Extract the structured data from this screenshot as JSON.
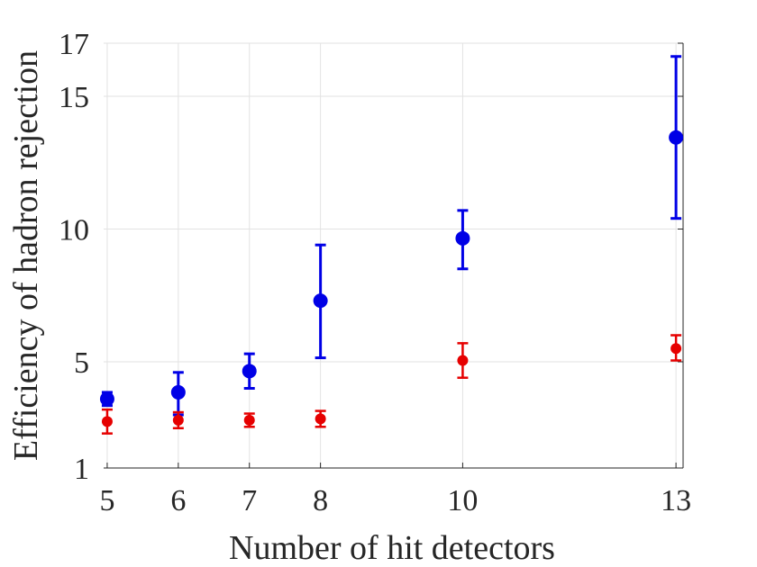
{
  "chart_data": {
    "type": "scatter",
    "title": "",
    "xlabel": "Number of hit detectors",
    "ylabel": "Efficiency of hadron rejection",
    "x_ticks": [
      5,
      6,
      7,
      8,
      10,
      13
    ],
    "y_ticks": [
      1,
      5,
      10,
      15,
      17
    ],
    "x_tick_labels": [
      "5",
      "6",
      "7",
      "8",
      "10",
      "13"
    ],
    "y_tick_labels": [
      "1",
      "5",
      "10",
      "15",
      "17"
    ],
    "xlim": [
      4.95,
      13.1
    ],
    "ylim": [
      1,
      17
    ],
    "grid": true,
    "legend": "none",
    "series": [
      {
        "color": "#0000e6",
        "marker": "large-circle",
        "points": [
          {
            "x": 5,
            "y": 3.6,
            "lo": 3.35,
            "hi": 3.85
          },
          {
            "x": 6,
            "y": 3.85,
            "lo": 3.0,
            "hi": 4.6
          },
          {
            "x": 7,
            "y": 4.65,
            "lo": 4.0,
            "hi": 5.3
          },
          {
            "x": 8,
            "y": 7.3,
            "lo": 5.15,
            "hi": 9.4
          },
          {
            "x": 10,
            "y": 9.65,
            "lo": 8.5,
            "hi": 10.7
          },
          {
            "x": 13,
            "y": 13.45,
            "lo": 10.4,
            "hi": 16.5
          }
        ]
      },
      {
        "color": "#e60000",
        "marker": "small-circle",
        "points": [
          {
            "x": 5,
            "y": 2.75,
            "lo": 2.3,
            "hi": 3.2
          },
          {
            "x": 6,
            "y": 2.8,
            "lo": 2.5,
            "hi": 3.1
          },
          {
            "x": 7,
            "y": 2.8,
            "lo": 2.55,
            "hi": 3.05
          },
          {
            "x": 8,
            "y": 2.85,
            "lo": 2.55,
            "hi": 3.15
          },
          {
            "x": 10,
            "y": 5.05,
            "lo": 4.4,
            "hi": 5.7
          },
          {
            "x": 13,
            "y": 5.5,
            "lo": 5.05,
            "hi": 6.0
          }
        ]
      }
    ]
  }
}
